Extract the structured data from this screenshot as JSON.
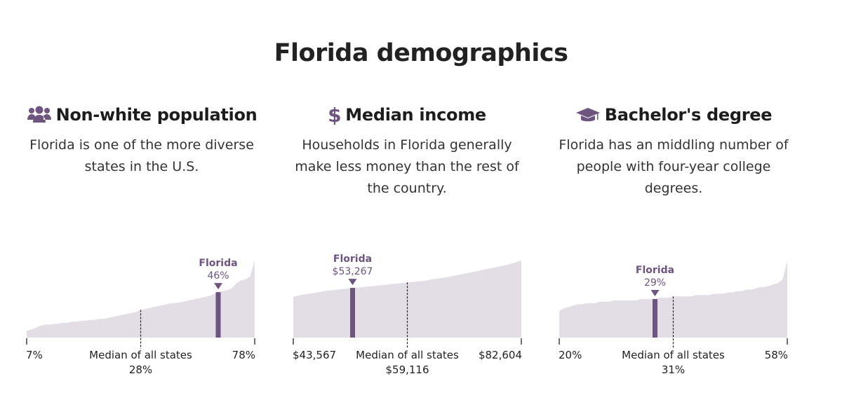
{
  "title": "Florida demographics",
  "colors": {
    "accent": "#6e5580",
    "area": "#e3dde6",
    "text": "#222222"
  },
  "chart_data": [
    {
      "type": "area",
      "heading": "Non-white population",
      "icon": "users-icon",
      "description": "Florida is one of the more diverse states in the U.S.",
      "ylim": [
        0,
        78
      ],
      "values": [
        7,
        8,
        10,
        12,
        13,
        13,
        14,
        14,
        15,
        15,
        16,
        16,
        17,
        17,
        18,
        18,
        19,
        19,
        20,
        21,
        22,
        23,
        24,
        25,
        26,
        28,
        29,
        30,
        31,
        32,
        33,
        34,
        35,
        35,
        36,
        37,
        38,
        39,
        40,
        41,
        42,
        44,
        46,
        47,
        48,
        50,
        55,
        58,
        59,
        62,
        78
      ],
      "highlight": {
        "label": "Florida",
        "value_label": "46%",
        "value": 46,
        "index": 42
      },
      "median": {
        "label": "Median of all states",
        "value_label": "28%",
        "index": 25
      },
      "min_label": "7%",
      "max_label": "78%"
    },
    {
      "type": "area",
      "heading": "Median income",
      "icon": "dollar-icon",
      "description": "Households in Florida generally make less money than the rest of the country.",
      "ylim": [
        0,
        82604
      ],
      "values": [
        43567,
        45000,
        46000,
        46500,
        47500,
        48000,
        49000,
        50000,
        50500,
        51000,
        51500,
        52000,
        52500,
        53267,
        53500,
        54000,
        54500,
        55000,
        55500,
        56000,
        56500,
        57000,
        57500,
        58000,
        58500,
        59116,
        59500,
        60000,
        60500,
        61000,
        62000,
        63000,
        63500,
        64000,
        65000,
        66000,
        67000,
        68000,
        69000,
        70000,
        71000,
        72000,
        73000,
        74000,
        75000,
        76000,
        77000,
        78000,
        79500,
        81000,
        82604
      ],
      "highlight": {
        "label": "Florida",
        "value_label": "$53,267",
        "value": 53267,
        "index": 13
      },
      "median": {
        "label": "Median of all states",
        "value_label": "$59,116",
        "index": 25
      },
      "min_label": "$43,567",
      "max_label": "$82,604"
    },
    {
      "type": "area",
      "heading": "Bachelor's degree",
      "icon": "graduation-cap-icon",
      "description": "Florida has an middling number of people with four-year college degrees.",
      "ylim": [
        0,
        58
      ],
      "values": [
        20,
        22,
        23,
        24,
        25,
        25,
        26,
        26,
        26,
        27,
        27,
        27,
        28,
        28,
        28,
        28,
        28,
        28,
        29,
        29,
        29,
        29,
        30,
        30,
        30,
        31,
        31,
        31,
        31,
        31,
        32,
        32,
        32,
        32,
        33,
        33,
        33,
        34,
        34,
        35,
        35,
        36,
        36,
        37,
        38,
        38,
        39,
        40,
        41,
        44,
        58
      ],
      "highlight": {
        "label": "Florida",
        "value_label": "29%",
        "value": 29,
        "index": 21
      },
      "median": {
        "label": "Median of all states",
        "value_label": "31%",
        "index": 25
      },
      "min_label": "20%",
      "max_label": "58%"
    }
  ]
}
